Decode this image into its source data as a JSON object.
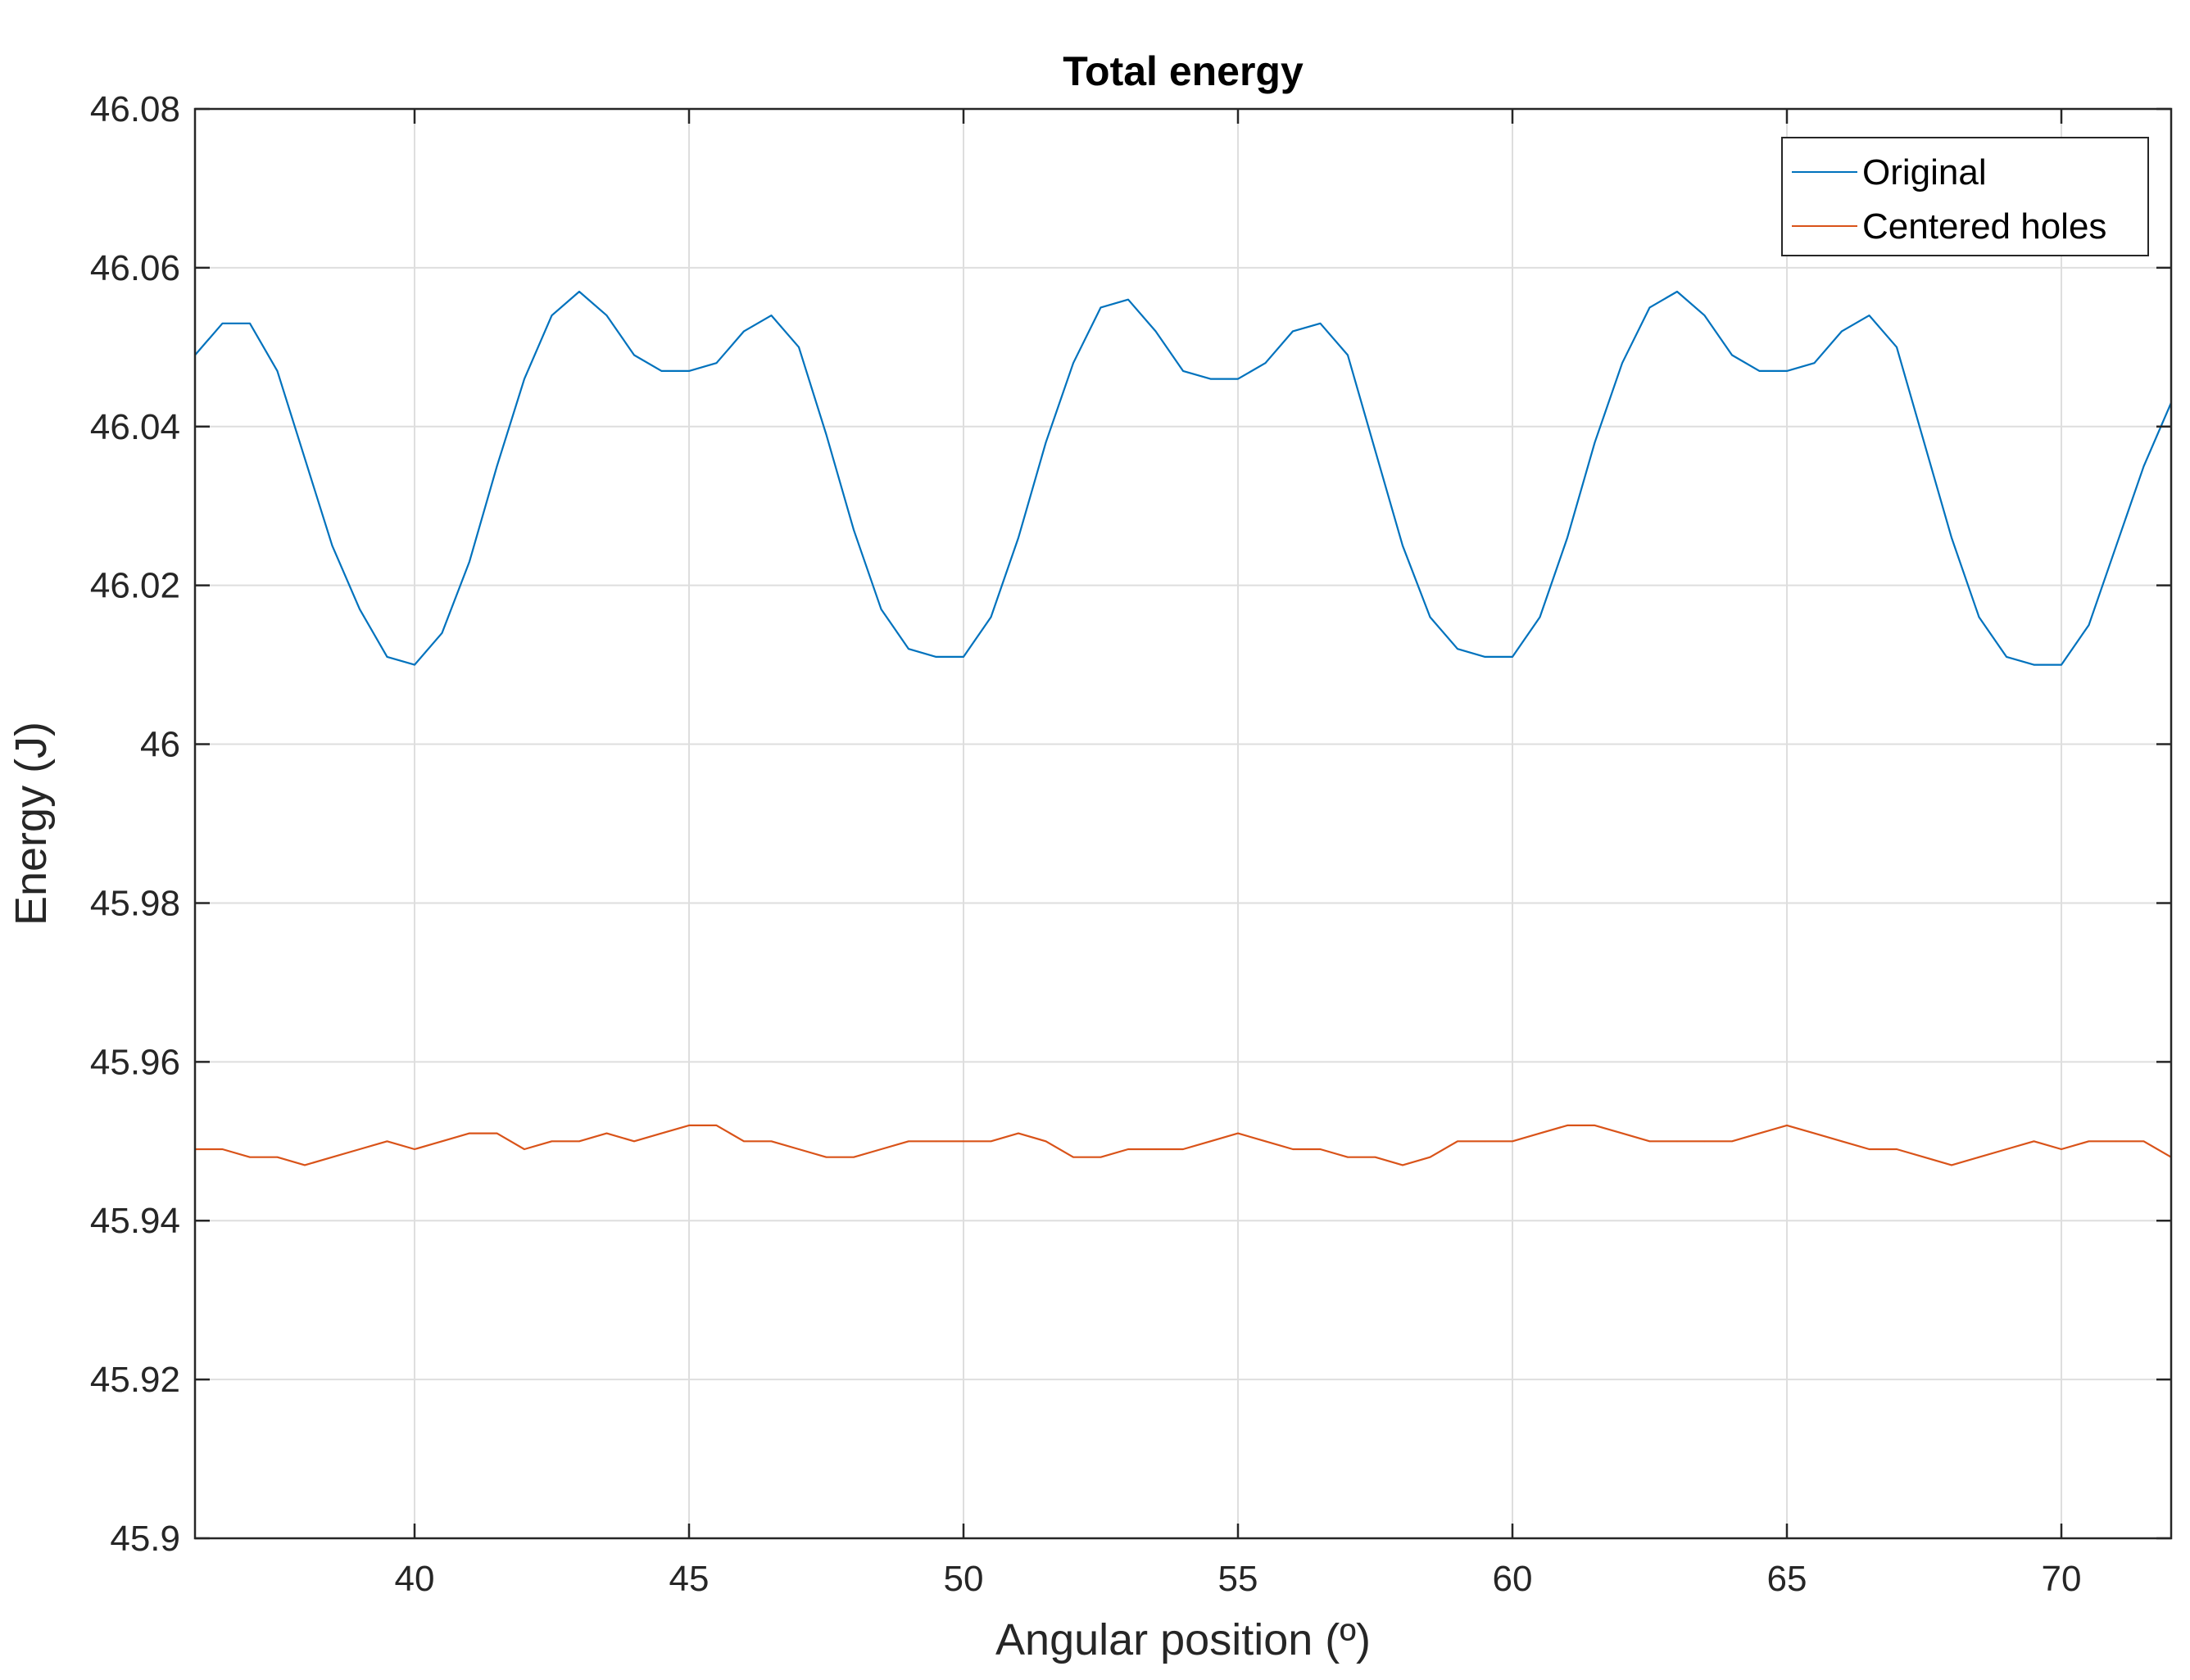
{
  "chart_data": {
    "type": "line",
    "title": "Total energy",
    "xlabel": "Angular position (º)",
    "ylabel": "Energy (J)",
    "xlim": [
      36,
      72
    ],
    "ylim": [
      45.9,
      46.08
    ],
    "xticks": [
      40,
      45,
      50,
      55,
      60,
      65,
      70
    ],
    "xtick_labels": [
      "40",
      "45",
      "50",
      "55",
      "60",
      "65",
      "70"
    ],
    "yticks": [
      45.9,
      45.92,
      45.94,
      45.96,
      45.98,
      46,
      46.02,
      46.04,
      46.06,
      46.08
    ],
    "ytick_labels": [
      "45.9",
      "45.92",
      "45.94",
      "45.96",
      "45.98",
      "46",
      "46.02",
      "46.04",
      "46.06",
      "46.08"
    ],
    "grid": true,
    "legend_position": "top-right",
    "series": [
      {
        "name": "Original",
        "color": "#0072BD",
        "x": [
          36.0,
          36.5,
          37.0,
          37.5,
          38.0,
          38.5,
          39.0,
          39.5,
          40.0,
          40.5,
          41.0,
          41.5,
          42.0,
          42.5,
          43.0,
          43.5,
          44.0,
          44.5,
          45.0,
          45.5,
          46.0,
          46.5,
          47.0,
          47.5,
          48.0,
          48.5,
          49.0,
          49.5,
          50.0,
          50.5,
          51.0,
          51.5,
          52.0,
          52.5,
          53.0,
          53.5,
          54.0,
          54.5,
          55.0,
          55.5,
          56.0,
          56.5,
          57.0,
          57.5,
          58.0,
          58.5,
          59.0,
          59.5,
          60.0,
          60.5,
          61.0,
          61.5,
          62.0,
          62.5,
          63.0,
          63.5,
          64.0,
          64.5,
          65.0,
          65.5,
          66.0,
          66.5,
          67.0,
          67.5,
          68.0,
          68.5,
          69.0,
          69.5,
          70.0,
          70.5,
          71.0,
          71.5,
          72.0
        ],
        "values": [
          46.049,
          46.053,
          46.053,
          46.047,
          46.036,
          46.025,
          46.017,
          46.011,
          46.01,
          46.014,
          46.023,
          46.035,
          46.046,
          46.054,
          46.057,
          46.054,
          46.049,
          46.047,
          46.047,
          46.048,
          46.052,
          46.054,
          46.05,
          46.039,
          46.027,
          46.017,
          46.012,
          46.011,
          46.011,
          46.016,
          46.026,
          46.038,
          46.048,
          46.055,
          46.056,
          46.052,
          46.047,
          46.046,
          46.046,
          46.048,
          46.052,
          46.053,
          46.049,
          46.037,
          46.025,
          46.016,
          46.012,
          46.011,
          46.011,
          46.016,
          46.026,
          46.038,
          46.048,
          46.055,
          46.057,
          46.054,
          46.049,
          46.047,
          46.047,
          46.048,
          46.052,
          46.054,
          46.05,
          46.038,
          46.026,
          46.016,
          46.011,
          46.01,
          46.01,
          46.015,
          46.025,
          46.035,
          46.043
        ]
      },
      {
        "name": "Centered holes",
        "color": "#D95319",
        "x": [
          36.0,
          36.5,
          37.0,
          37.5,
          38.0,
          38.5,
          39.0,
          39.5,
          40.0,
          40.5,
          41.0,
          41.5,
          42.0,
          42.5,
          43.0,
          43.5,
          44.0,
          44.5,
          45.0,
          45.5,
          46.0,
          46.5,
          47.0,
          47.5,
          48.0,
          48.5,
          49.0,
          49.5,
          50.0,
          50.5,
          51.0,
          51.5,
          52.0,
          52.5,
          53.0,
          53.5,
          54.0,
          54.5,
          55.0,
          55.5,
          56.0,
          56.5,
          57.0,
          57.5,
          58.0,
          58.5,
          59.0,
          59.5,
          60.0,
          60.5,
          61.0,
          61.5,
          62.0,
          62.5,
          63.0,
          63.5,
          64.0,
          64.5,
          65.0,
          65.5,
          66.0,
          66.5,
          67.0,
          67.5,
          68.0,
          68.5,
          69.0,
          69.5,
          70.0,
          70.5,
          71.0,
          71.5,
          72.0
        ],
        "values": [
          45.949,
          45.949,
          45.948,
          45.948,
          45.947,
          45.948,
          45.949,
          45.95,
          45.949,
          45.95,
          45.951,
          45.951,
          45.949,
          45.95,
          45.95,
          45.951,
          45.95,
          45.951,
          45.952,
          45.952,
          45.95,
          45.95,
          45.949,
          45.948,
          45.948,
          45.949,
          45.95,
          45.95,
          45.95,
          45.95,
          45.951,
          45.95,
          45.948,
          45.948,
          45.949,
          45.949,
          45.949,
          45.95,
          45.951,
          45.95,
          45.949,
          45.949,
          45.948,
          45.948,
          45.947,
          45.948,
          45.95,
          45.95,
          45.95,
          45.951,
          45.952,
          45.952,
          45.951,
          45.95,
          45.95,
          45.95,
          45.95,
          45.951,
          45.952,
          45.951,
          45.95,
          45.949,
          45.949,
          45.948,
          45.947,
          45.948,
          45.949,
          45.95,
          45.949,
          45.95,
          45.95,
          45.95,
          45.948
        ]
      }
    ]
  }
}
